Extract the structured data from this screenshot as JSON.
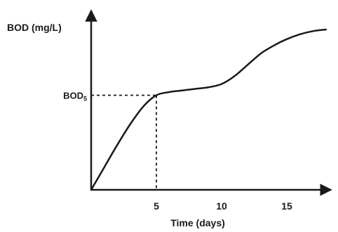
{
  "chart_data": {
    "type": "line",
    "title": "",
    "ylabel": "BOD (mg/L)",
    "xlabel": "Time (days)",
    "x_ticks": [
      5,
      10,
      15
    ],
    "y_marker_label": "BOD5",
    "marker": {
      "x": 5
    },
    "xlim": [
      0,
      18.5
    ],
    "ylim": [
      0,
      1.0
    ],
    "grid": false,
    "series": [
      {
        "x": [
          0,
          1,
          2,
          3,
          4,
          5,
          6,
          7,
          8,
          9,
          10,
          11,
          12,
          13,
          14,
          15,
          16,
          17,
          18
        ],
        "y": [
          0,
          0.14,
          0.28,
          0.41,
          0.52,
          0.59,
          0.61,
          0.62,
          0.63,
          0.64,
          0.66,
          0.71,
          0.78,
          0.85,
          0.9,
          0.94,
          0.97,
          0.99,
          1.0
        ]
      }
    ]
  }
}
